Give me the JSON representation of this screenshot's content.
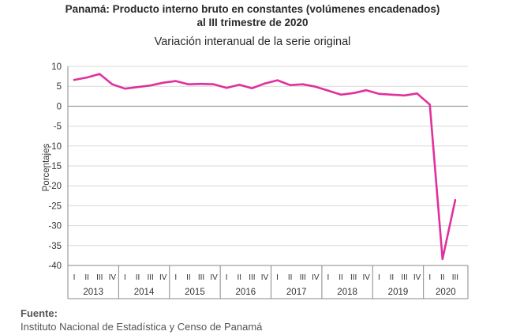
{
  "titles": {
    "line1": "Panamá: Producto interno bruto en constantes (volúmenes encadenados)",
    "line2": "al III trimestre de 2020",
    "subtitle": "Variación interanual de la serie original"
  },
  "source": {
    "label": "Fuente:",
    "text": "Instituto Nacional de Estadística y Censo de Panamá"
  },
  "colors": {
    "series": "#e0309d",
    "grid": "#d9d9d9",
    "axis": "#888888"
  },
  "chart_data": {
    "type": "line",
    "ylabel": "Porcentajes",
    "ylim": [
      -40,
      10
    ],
    "yticks": [
      10,
      5,
      0,
      -5,
      -10,
      -15,
      -20,
      -25,
      -30,
      -35,
      -40
    ],
    "grid": true,
    "quarters": [
      "I",
      "II",
      "III",
      "IV",
      "I",
      "II",
      "III",
      "IV",
      "I",
      "II",
      "III",
      "IV",
      "I",
      "II",
      "III",
      "IV",
      "I",
      "II",
      "III",
      "IV",
      "I",
      "II",
      "III",
      "IV",
      "I",
      "II",
      "III",
      "IV",
      "I",
      "II",
      "III"
    ],
    "years": [
      {
        "label": "2013",
        "quarters": 4
      },
      {
        "label": "2014",
        "quarters": 4
      },
      {
        "label": "2015",
        "quarters": 4
      },
      {
        "label": "2016",
        "quarters": 4
      },
      {
        "label": "2017",
        "quarters": 4
      },
      {
        "label": "2018",
        "quarters": 4
      },
      {
        "label": "2019",
        "quarters": 4
      },
      {
        "label": "2020",
        "quarters": 3
      }
    ],
    "values": [
      6.6,
      7.2,
      8.1,
      5.5,
      4.4,
      4.8,
      5.2,
      5.9,
      6.3,
      5.5,
      5.6,
      5.5,
      4.6,
      5.4,
      4.5,
      5.7,
      6.5,
      5.3,
      5.5,
      4.9,
      3.9,
      2.9,
      3.3,
      4.0,
      3.1,
      2.9,
      2.7,
      3.2,
      0.4,
      -38.4,
      -23.6
    ]
  }
}
